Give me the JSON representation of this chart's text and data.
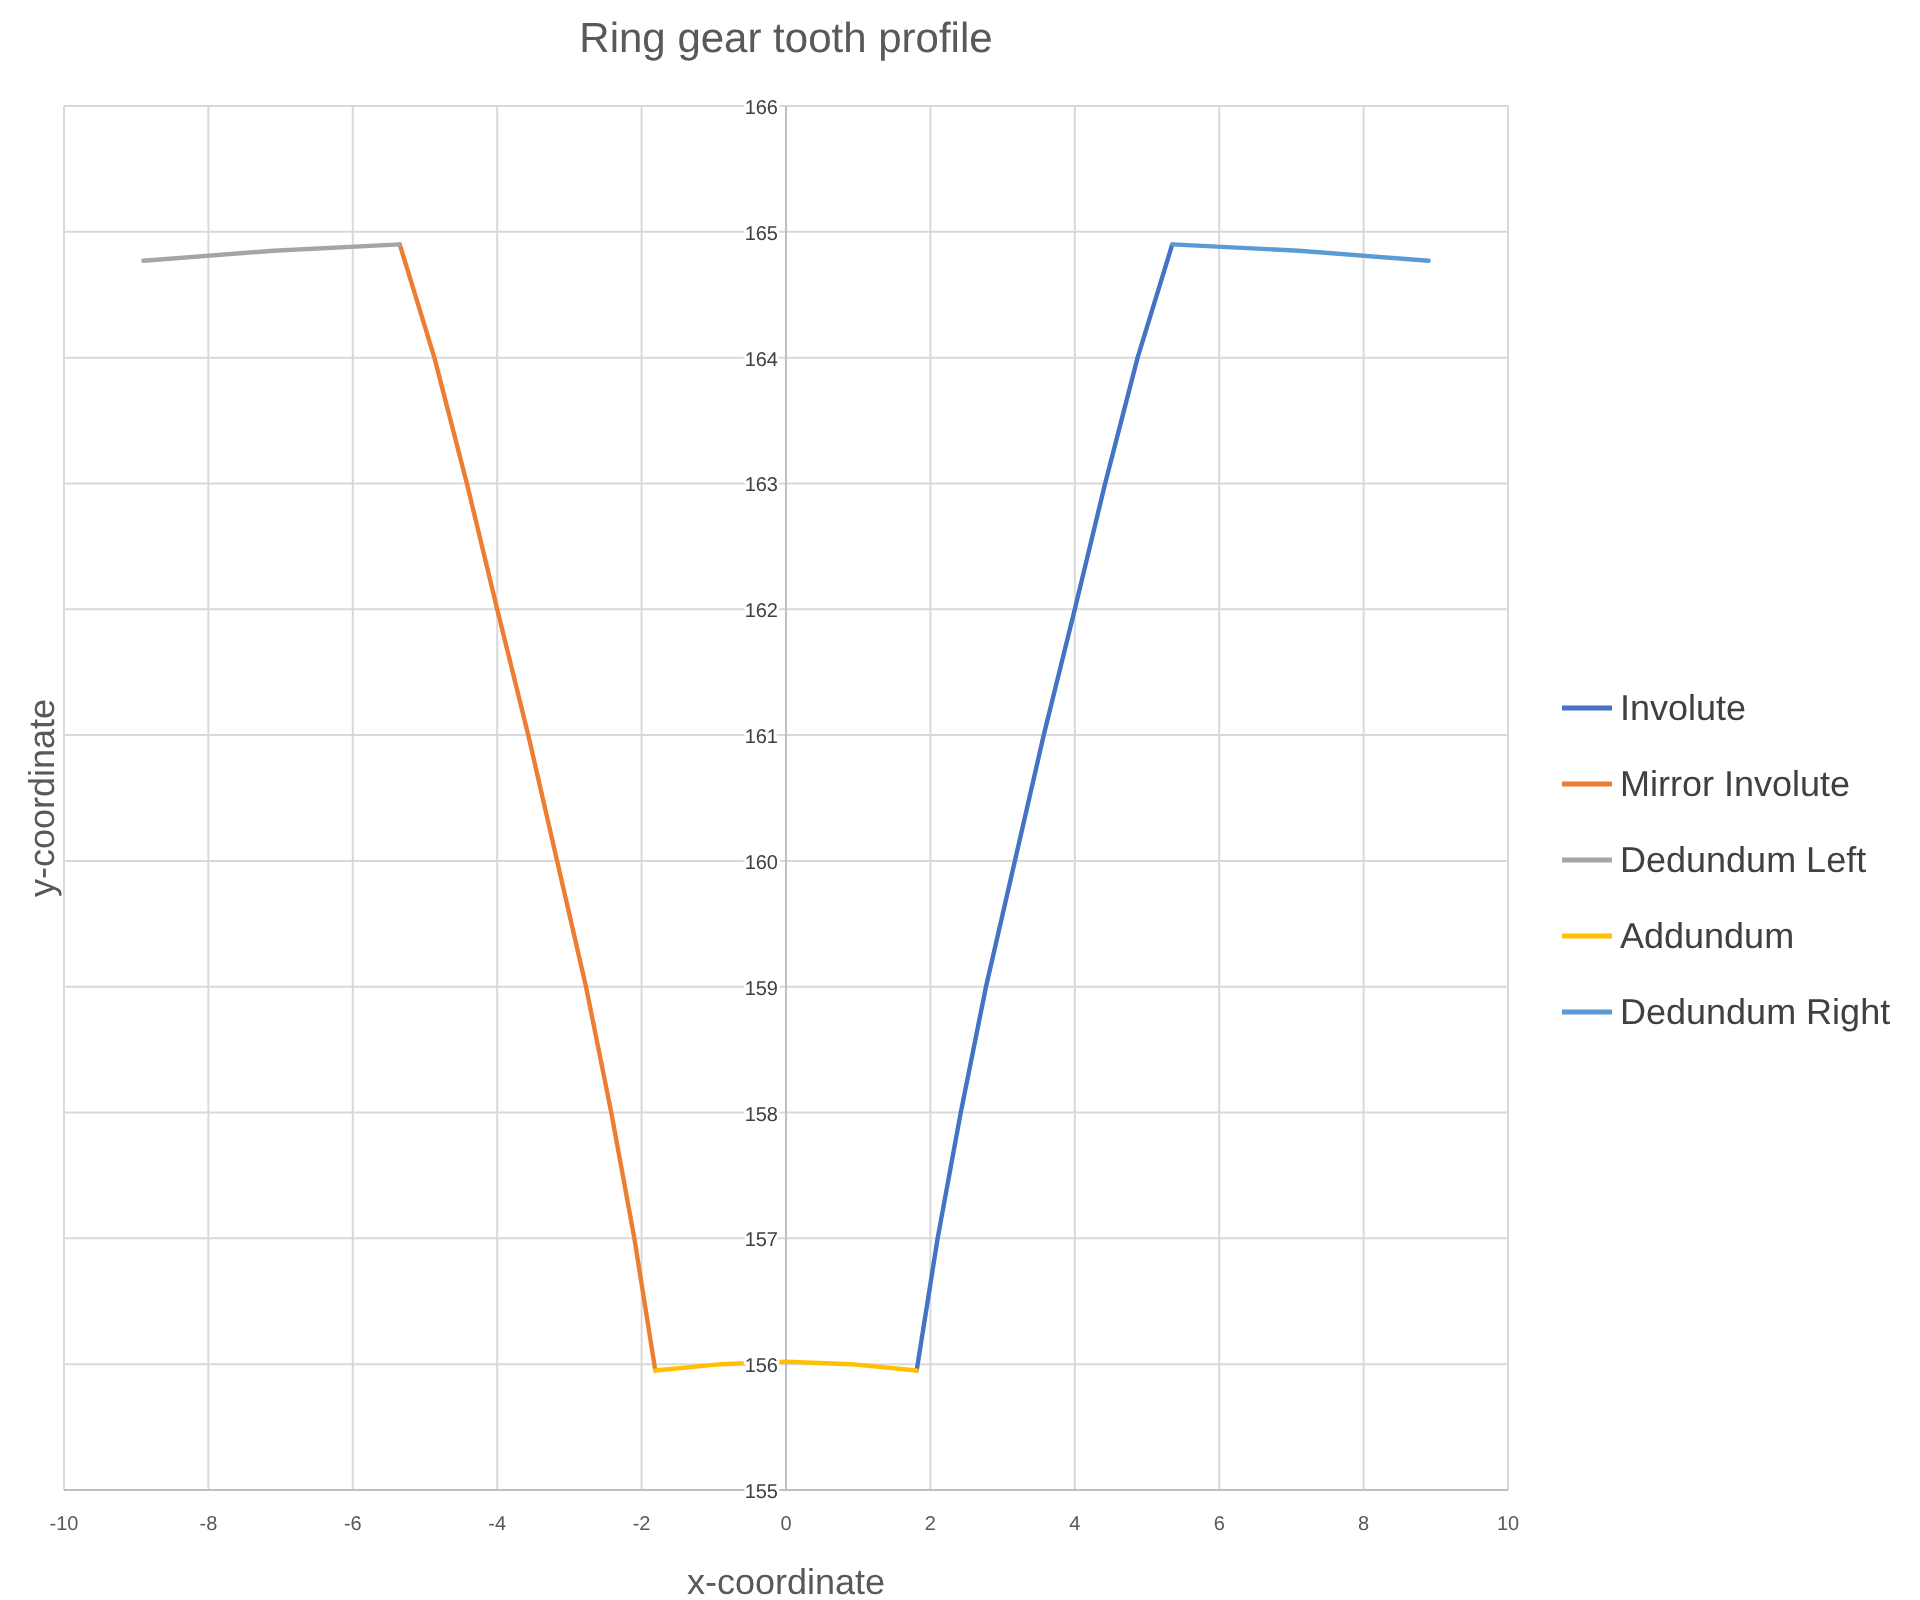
{
  "chart_data": {
    "type": "line",
    "title": "Ring gear tooth profile",
    "xlabel": "x-coordinate",
    "ylabel": "y-coordinate",
    "xlim": [
      -10,
      10
    ],
    "xticks": [
      -10,
      -8,
      -6,
      -4,
      -2,
      0,
      2,
      4,
      6,
      8,
      10
    ],
    "ylim": [
      155,
      166
    ],
    "yticks": [
      155,
      156,
      157,
      158,
      159,
      160,
      161,
      162,
      163,
      164,
      165,
      166
    ],
    "grid": true,
    "legend": "right",
    "marker": "none",
    "line_style": "solid",
    "series": [
      {
        "name": "Involute",
        "color": "#4472c4",
        "x": [
          1.81,
          2.1,
          2.42,
          2.77,
          3.17,
          3.57,
          4.0,
          4.42,
          4.87,
          5.35
        ],
        "values": [
          155.95,
          157,
          158,
          159,
          160,
          161,
          162,
          163,
          164,
          164.9
        ]
      },
      {
        "name": "Mirror Involute",
        "color": "#ed7d31",
        "x": [
          -1.81,
          -2.1,
          -2.42,
          -2.77,
          -3.17,
          -3.57,
          -4.0,
          -4.42,
          -4.87,
          -5.35
        ],
        "values": [
          155.95,
          157,
          158,
          159,
          160,
          161,
          162,
          163,
          164,
          164.9
        ]
      },
      {
        "name": "Dedundum Left",
        "color": "#a5a5a5",
        "x": [
          -8.9,
          -7.1,
          -5.35
        ],
        "values": [
          164.77,
          164.85,
          164.9
        ]
      },
      {
        "name": "Addundum",
        "color": "#ffc000",
        "x": [
          -1.81,
          -0.9,
          0,
          0.9,
          1.81
        ],
        "values": [
          155.95,
          156.0,
          156.02,
          156.0,
          155.95
        ]
      },
      {
        "name": "Dedundum Right",
        "color": "#5b9bd5",
        "x": [
          5.35,
          7.1,
          8.9
        ],
        "values": [
          164.9,
          164.85,
          164.77
        ]
      }
    ]
  }
}
